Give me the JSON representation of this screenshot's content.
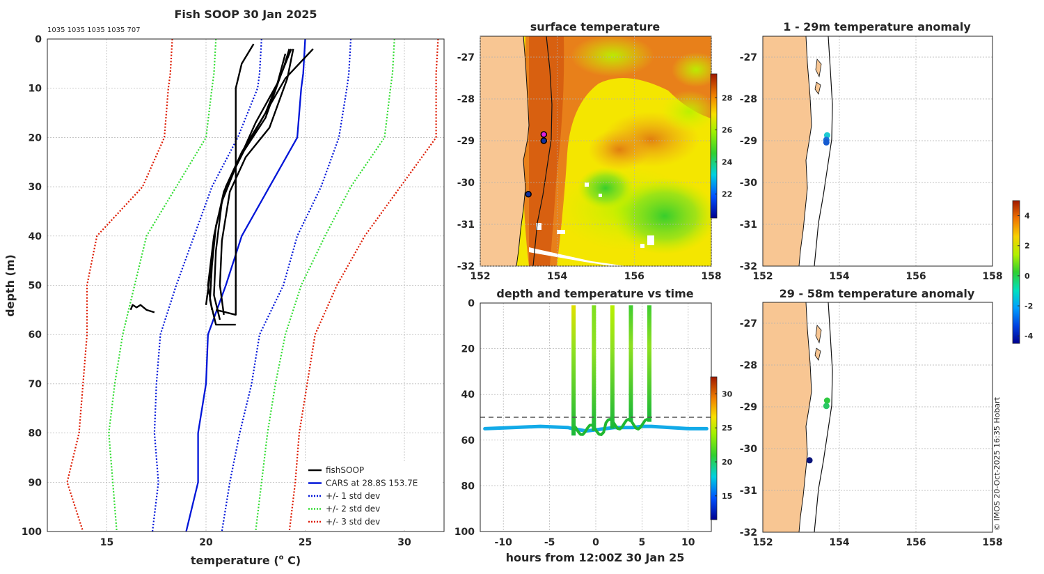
{
  "figure_title": "Fish SOOP 30 Jan 2025",
  "sample_counts": "1035 1035 1035 1035 707",
  "copyright": "© IMOS 20-Oct-2025 16:35 Hobart",
  "chart_data": [
    {
      "id": "profile",
      "type": "line",
      "title": "Fish SOOP 30 Jan 2025",
      "xlabel": "temperature (",
      "xlabel_sup": "o",
      "xlabel_end": " C)",
      "ylabel": "depth (m)",
      "xlim": [
        12,
        32
      ],
      "ylim": [
        0,
        100
      ],
      "y_reversed": true,
      "xticks": [
        15,
        20,
        25,
        30
      ],
      "yticks": [
        0,
        10,
        20,
        30,
        40,
        50,
        60,
        70,
        80,
        90,
        100
      ],
      "grid": true,
      "legend_position": "bottom-right",
      "legend": [
        {
          "label": "fishSOOP",
          "color": "#000000",
          "style": "solid"
        },
        {
          "label": "CARS at 28.8S 153.7E",
          "color": "#0015d8",
          "style": "solid"
        },
        {
          "label": "+/- 1 std dev",
          "color": "#0015d8",
          "style": "dotted"
        },
        {
          "label": "+/- 2 std dev",
          "color": "#33dd33",
          "style": "dotted"
        },
        {
          "label": "+/- 3 std dev",
          "color": "#dd1a00",
          "style": "dotted"
        }
      ],
      "cars_depth": [
        0,
        7,
        10,
        20,
        30,
        40,
        50,
        60,
        70,
        80,
        90,
        100
      ],
      "cars_mean": [
        25.0,
        24.9,
        24.8,
        24.6,
        23.2,
        21.8,
        21.0,
        20.1,
        20.0,
        19.6,
        19.6,
        19.0
      ],
      "std_lines": [
        {
          "name": "minus1",
          "color": "#0015d8",
          "temps": [
            22.8,
            22.7,
            22.6,
            21.6,
            20.3,
            19.4,
            18.5,
            17.7,
            17.5,
            17.4,
            17.6,
            17.3
          ]
        },
        {
          "name": "plus1",
          "color": "#0015d8",
          "temps": [
            27.3,
            27.2,
            27.1,
            26.7,
            25.8,
            24.6,
            23.9,
            22.7,
            22.3,
            21.7,
            21.2,
            20.8
          ]
        },
        {
          "name": "minus2",
          "color": "#33dd33",
          "temps": [
            20.5,
            20.4,
            20.3,
            20.0,
            18.5,
            17.0,
            16.4,
            15.8,
            15.4,
            15.1,
            15.3,
            15.5
          ]
        },
        {
          "name": "plus2",
          "color": "#33dd33",
          "temps": [
            29.5,
            29.4,
            29.3,
            29.0,
            27.3,
            26.0,
            24.8,
            24.0,
            23.5,
            23.1,
            22.8,
            22.5
          ]
        },
        {
          "name": "minus3",
          "color": "#dd1a00",
          "temps": [
            18.3,
            18.2,
            18.1,
            17.9,
            16.8,
            14.5,
            14.0,
            14.0,
            13.8,
            13.6,
            13.0,
            13.8
          ]
        },
        {
          "name": "plus3",
          "color": "#dd1a00",
          "temps": [
            31.7,
            31.6,
            31.6,
            31.6,
            29.8,
            28.0,
            26.6,
            25.5,
            25.1,
            24.7,
            24.5,
            24.2
          ]
        }
      ],
      "fishsoop_casts": [
        {
          "temps": [
            22.4,
            21.8,
            21.5,
            21.5,
            21.5,
            21.5,
            21.5,
            21.5,
            21.5,
            20.5
          ],
          "depths": [
            1,
            5,
            10,
            20,
            30,
            40,
            50,
            54,
            56,
            55
          ]
        },
        {
          "temps": [
            25.4,
            24.0,
            23.0,
            21.8,
            21.0,
            20.5,
            20.3,
            20.2,
            20.5,
            21.5
          ],
          "depths": [
            2,
            8,
            15,
            23,
            30,
            38,
            46,
            53,
            58,
            58
          ]
        },
        {
          "temps": [
            24.2,
            23.9,
            23.0,
            22.0,
            21.0,
            20.5,
            20.2,
            20.0
          ],
          "depths": [
            2,
            6,
            15,
            22,
            30,
            38,
            48,
            54
          ]
        },
        {
          "temps": [
            24.3,
            23.8,
            23.0,
            21.7,
            20.9,
            20.4,
            20.1,
            20.3
          ],
          "depths": [
            2,
            7,
            16,
            24,
            31,
            40,
            50,
            55
          ]
        },
        {
          "temps": [
            24.0,
            23.6,
            22.5,
            21.5,
            20.8,
            20.5,
            20.4,
            20.7
          ],
          "depths": [
            3,
            9,
            17,
            26,
            33,
            43,
            52,
            57
          ]
        },
        {
          "temps": [
            24.4,
            24.1,
            23.2,
            22.0,
            21.2,
            20.8,
            20.7,
            20.9
          ],
          "depths": [
            2,
            8,
            18,
            24,
            31,
            41,
            50,
            56
          ]
        },
        {
          "temps": [
            16.2,
            16.3,
            16.5,
            16.7,
            17.0,
            17.4
          ],
          "depths": [
            55,
            54,
            54.5,
            54,
            55,
            55.5
          ]
        }
      ]
    },
    {
      "id": "surface_map",
      "type": "heatmap",
      "title": "surface temperature",
      "xlim": [
        152,
        158
      ],
      "ylim": [
        -32,
        -26.5
      ],
      "xticks": [
        152,
        154,
        156,
        158
      ],
      "yticks": [
        -27,
        -28,
        -29,
        -30,
        -31,
        -32
      ],
      "colorbar_ticks": [
        22,
        24,
        26,
        28
      ],
      "colorbar_range": [
        20.5,
        29.5
      ],
      "stations": [
        [
          153.65,
          -28.85
        ],
        [
          153.65,
          -29.0
        ],
        [
          153.25,
          -30.28
        ]
      ]
    },
    {
      "id": "anomaly_shallow",
      "type": "scatter",
      "title": "1 - 29m temperature anomaly",
      "xlim": [
        152,
        158
      ],
      "ylim": [
        -32,
        -26.5
      ],
      "xticks": [
        152,
        154,
        156,
        158
      ],
      "yticks": [
        -27,
        -28,
        -29,
        -30,
        -31,
        -32
      ],
      "points": [
        {
          "lon": 153.68,
          "lat": -28.87,
          "color": "#1ecbd2"
        },
        {
          "lon": 153.66,
          "lat": -28.98,
          "color": "#1c6fd8"
        },
        {
          "lon": 153.66,
          "lat": -29.04,
          "color": "#155bd0"
        }
      ]
    },
    {
      "id": "anomaly_deep",
      "type": "scatter",
      "title": "29 - 58m temperature anomaly",
      "xlim": [
        152,
        158
      ],
      "ylim": [
        -32,
        -26.5
      ],
      "xticks": [
        152,
        154,
        156,
        158
      ],
      "yticks": [
        -27,
        -28,
        -29,
        -30,
        -31,
        -32
      ],
      "points": [
        {
          "lon": 153.68,
          "lat": -28.85,
          "color": "#2ec940"
        },
        {
          "lon": 153.66,
          "lat": -28.98,
          "color": "#29c764"
        },
        {
          "lon": 153.22,
          "lat": -30.28,
          "color": "#0a147a"
        }
      ]
    },
    {
      "id": "anomaly_colorbar",
      "type": "heatmap",
      "colorbar_ticks": [
        4,
        2,
        0,
        -2,
        -4
      ],
      "colorbar_range": [
        -4.5,
        5.0
      ]
    },
    {
      "id": "depth_time",
      "type": "scatter",
      "title": "depth and temperature vs time",
      "xlabel": "hours from 12:00Z 30 Jan 25",
      "xlim": [
        -12.5,
        12.5
      ],
      "ylim": [
        0,
        100
      ],
      "y_reversed": true,
      "xticks": [
        -10,
        -5,
        0,
        5,
        10
      ],
      "yticks": [
        0,
        20,
        40,
        60,
        80,
        100
      ],
      "reference_depth": 50,
      "colorbar_ticks": [
        15,
        20,
        25,
        30
      ],
      "colorbar_range": [
        11.5,
        32.5
      ],
      "seabed_hours": [
        -12,
        -9,
        -6,
        -3,
        -2.5,
        -1,
        0,
        1,
        2,
        3,
        4,
        5,
        6,
        8,
        10,
        12
      ],
      "seabed_depth": [
        55,
        54.5,
        54,
        54.5,
        55,
        56,
        55.5,
        55,
        54.5,
        54.5,
        54.5,
        54,
        54,
        54.5,
        55,
        55
      ],
      "casts_hours": [
        -2.4,
        -0.2,
        1.8,
        3.8,
        5.8
      ],
      "casts_bottom": [
        58,
        56,
        55,
        52,
        52
      ],
      "casts_top_temp": [
        25.5,
        24.0,
        24.5,
        23.0,
        22.0
      ]
    }
  ]
}
